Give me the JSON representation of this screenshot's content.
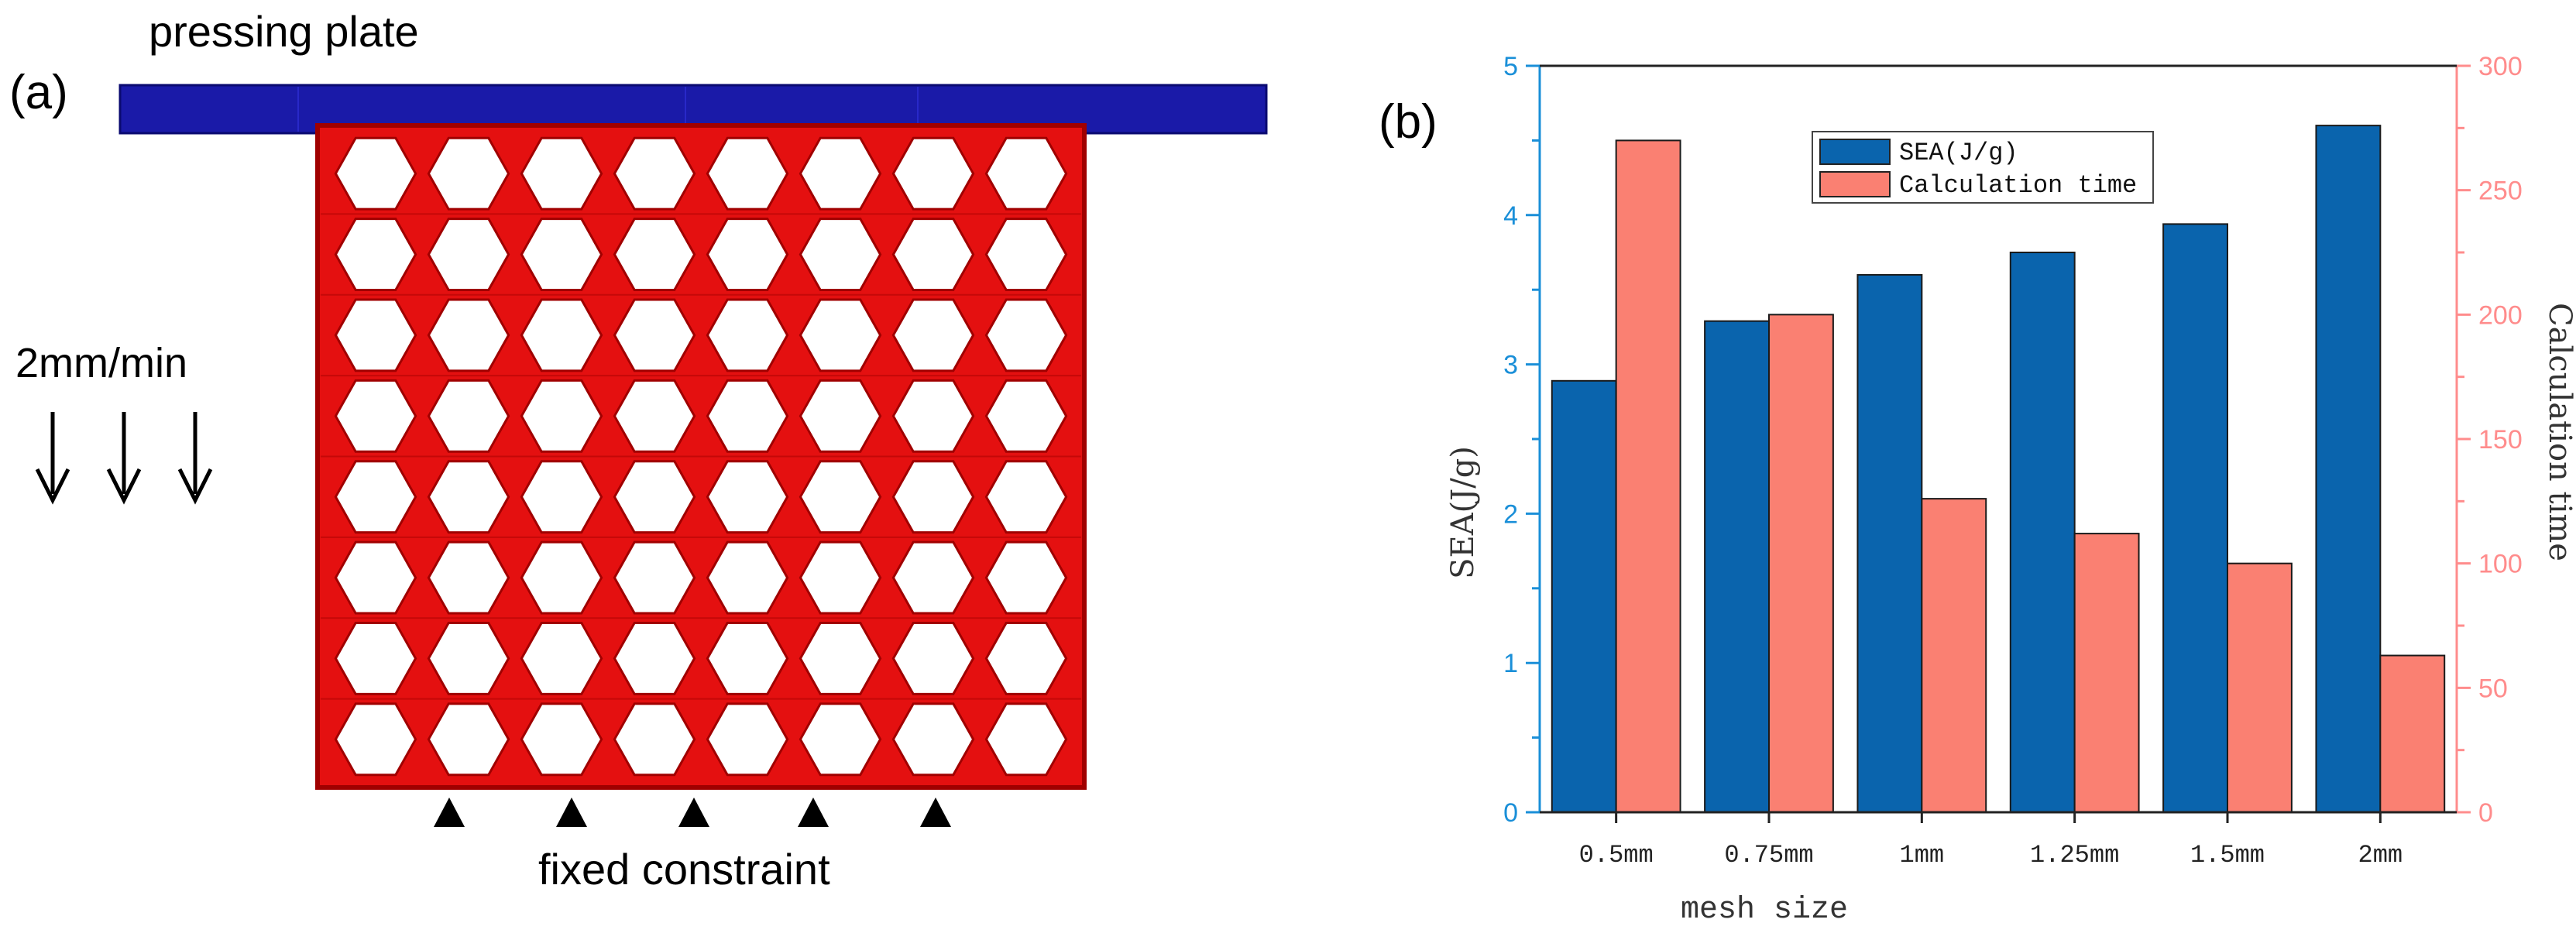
{
  "panel_a": {
    "label": "(a)",
    "plate_label": "pressing plate",
    "speed_label": "2mm/min",
    "constraint_label": "fixed constraint",
    "colors": {
      "plate": "#1a1aa8",
      "honeycomb": "#e41010",
      "honeycomb_dark": "#a00000"
    },
    "honeycomb": {
      "rows": 8,
      "cols": 8
    },
    "arrow_count": 3,
    "support_marker_count": 5
  },
  "chart_data": {
    "type": "bar",
    "panel_label": "(b)",
    "categories": [
      "0.5mm",
      "0.75mm",
      "1mm",
      "1.25mm",
      "1.5mm",
      "2mm"
    ],
    "series": [
      {
        "name": "SEA(J/g)",
        "axis": "left",
        "color": "#0a64ad",
        "values": [
          2.89,
          3.29,
          3.6,
          3.75,
          3.94,
          4.6
        ]
      },
      {
        "name": "Calculation time",
        "axis": "right",
        "color": "#fa8072",
        "values": [
          270,
          200,
          126,
          112,
          100,
          63
        ]
      }
    ],
    "xlabel": "mesh size",
    "ylabel_left": "SEA(J/g)",
    "ylabel_right": "Calculation time",
    "ylim_left": [
      0,
      5
    ],
    "ylim_right": [
      0,
      300
    ],
    "yticks_left": [
      "0",
      "1",
      "2",
      "3",
      "4",
      "5"
    ],
    "yticks_right": [
      "0",
      "50",
      "100",
      "150",
      "200",
      "250",
      "300"
    ],
    "left_axis_color": "#1a8fd8",
    "right_axis_color": "#ff8c8c",
    "legend_position": "top-center",
    "grid": false
  }
}
